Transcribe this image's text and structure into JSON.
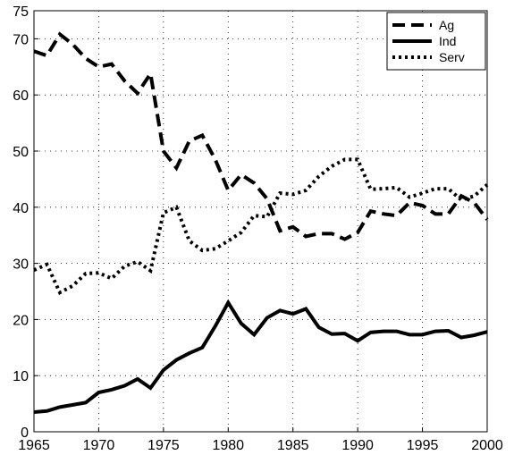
{
  "chart_data": {
    "type": "line",
    "x": [
      1965,
      1966,
      1967,
      1968,
      1969,
      1970,
      1971,
      1972,
      1973,
      1974,
      1975,
      1976,
      1977,
      1978,
      1979,
      1980,
      1981,
      1982,
      1983,
      1984,
      1985,
      1986,
      1987,
      1988,
      1989,
      1990,
      1991,
      1992,
      1993,
      1994,
      1995,
      1996,
      1997,
      1998,
      1999,
      2000
    ],
    "series": [
      {
        "name": "Ag",
        "color": "#000000",
        "dash": "dashed",
        "values": [
          67.8,
          67,
          70.8,
          69,
          66.5,
          65,
          65.5,
          62.5,
          60.3,
          63.8,
          50,
          47,
          51.8,
          52.8,
          48.5,
          43,
          45.8,
          44.3,
          41.5,
          35.8,
          36.5,
          34.8,
          35.3,
          35.3,
          34.3,
          35.5,
          39.3,
          38.8,
          38.5,
          40.8,
          40.3,
          38.8,
          38.8,
          42,
          40.8,
          37.8
        ]
      },
      {
        "name": "Ind",
        "color": "#000000",
        "dash": "solid",
        "values": [
          3.5,
          3.7,
          4.4,
          4.8,
          5.2,
          7,
          7.5,
          8.2,
          9.4,
          7.8,
          11,
          12.8,
          14,
          15,
          18.8,
          23,
          19.3,
          17.3,
          20.3,
          21.6,
          21,
          21.9,
          18.6,
          17.4,
          17.5,
          16.2,
          17.7,
          17.9,
          17.9,
          17.3,
          17.3,
          17.9,
          18,
          16.8,
          17.2,
          17.8
        ]
      },
      {
        "name": "Serv",
        "color": "#000000",
        "dash": "dotted",
        "values": [
          28.8,
          29.8,
          24.8,
          26,
          28.2,
          28.3,
          27.3,
          29.5,
          30.3,
          28.7,
          39,
          40,
          34,
          32.3,
          32.6,
          34,
          35.5,
          38.5,
          38.3,
          42.5,
          42.3,
          43,
          45.5,
          47.3,
          48.5,
          48.5,
          43.2,
          43.3,
          43.5,
          41.8,
          42.5,
          43.3,
          43.3,
          41.3,
          42,
          44
        ]
      }
    ],
    "xlim": [
      1965,
      2000
    ],
    "xticks": [
      1965,
      1970,
      1975,
      1980,
      1985,
      1990,
      1995,
      2000
    ],
    "ylim": [
      0,
      75
    ],
    "yticks": [
      0,
      10,
      20,
      30,
      40,
      50,
      60,
      70,
      75
    ],
    "grid": true,
    "legend": "top-right"
  }
}
